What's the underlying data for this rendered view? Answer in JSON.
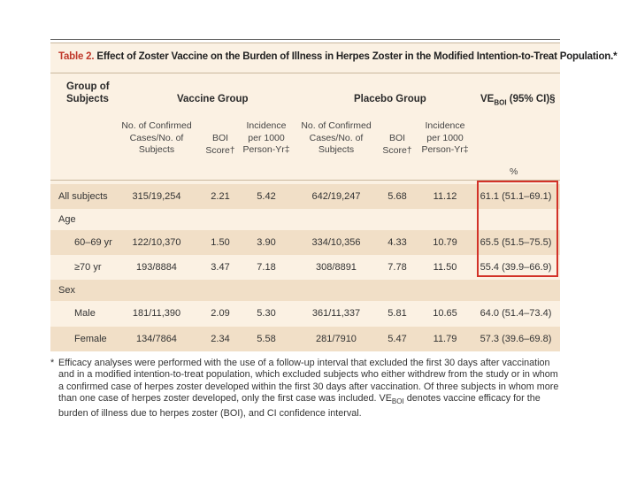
{
  "table": {
    "title_number": "Table 2.",
    "title_text": "Effect of Zoster Vaccine on the Burden of Illness in Herpes Zoster in the Modified Intention-to-Treat Population.*",
    "headers": {
      "group_line1": "Group of",
      "group_line2": "Subjects",
      "vaccine_group": "Vaccine Group",
      "placebo_group": "Placebo Group",
      "ve_main": "VE",
      "ve_sub": "BOI",
      "ve_tail": " (95% CI)§"
    },
    "subheaders": {
      "cases_l1": "No. of Confirmed",
      "cases_l2": "Cases/No. of",
      "cases_l3": "Subjects",
      "boi_l1": "BOI",
      "boi_l2": "Score†",
      "inc_l1": "Incidence",
      "inc_l2": "per 1000",
      "inc_l3": "Person-Yr‡",
      "percent": "%"
    },
    "rows": [
      {
        "label": "All subjects",
        "v_cases": "315/19,254",
        "v_boi": "2.21",
        "v_inc": "5.42",
        "p_cases": "642/19,247",
        "p_boi": "5.68",
        "p_inc": "11.12",
        "ve": "61.1 (51.1–69.1)"
      },
      {
        "label": "Age"
      },
      {
        "label": "60–69 yr",
        "v_cases": "122/10,370",
        "v_boi": "1.50",
        "v_inc": "3.90",
        "p_cases": "334/10,356",
        "p_boi": "4.33",
        "p_inc": "10.79",
        "ve": "65.5 (51.5–75.5)"
      },
      {
        "label": "≥70 yr",
        "v_cases": "193/8884",
        "v_boi": "3.47",
        "v_inc": "7.18",
        "p_cases": "308/8891",
        "p_boi": "7.78",
        "p_inc": "11.50",
        "ve": "55.4 (39.9–66.9)"
      },
      {
        "label": "Sex"
      },
      {
        "label": "Male",
        "v_cases": "181/11,390",
        "v_boi": "2.09",
        "v_inc": "5.30",
        "p_cases": "361/11,337",
        "p_boi": "5.81",
        "p_inc": "10.65",
        "ve": "64.0 (51.4–73.4)"
      },
      {
        "label": "Female",
        "v_cases": "134/7864",
        "v_boi": "2.34",
        "v_inc": "5.58",
        "p_cases": "281/7910",
        "p_boi": "5.47",
        "p_inc": "11.79",
        "ve": "57.3 (39.6–69.8)"
      }
    ]
  },
  "footnote": {
    "star": "*",
    "text_before": "Efficacy analyses were performed with the use of a follow-up interval that excluded the first 30 days after vaccination and in a modified intention-to-treat population, which excluded subjects who either withdrew from the study or in whom a confirmed case of herpes zoster developed within the first 30 days after vaccination. Of three subjects in whom more than one case of herpes zoster developed, only the first case was included. VE",
    "text_sub": "BOI",
    "text_after": " denotes vaccine efficacy for the burden of illness due to herpes zoster (BOI), and CI confidence interval."
  },
  "colors": {
    "title_red": "#c0392b",
    "table_bg": "#fbf1e3",
    "row_shade": "#f1dfc7",
    "highlight_box": "#d23228"
  }
}
